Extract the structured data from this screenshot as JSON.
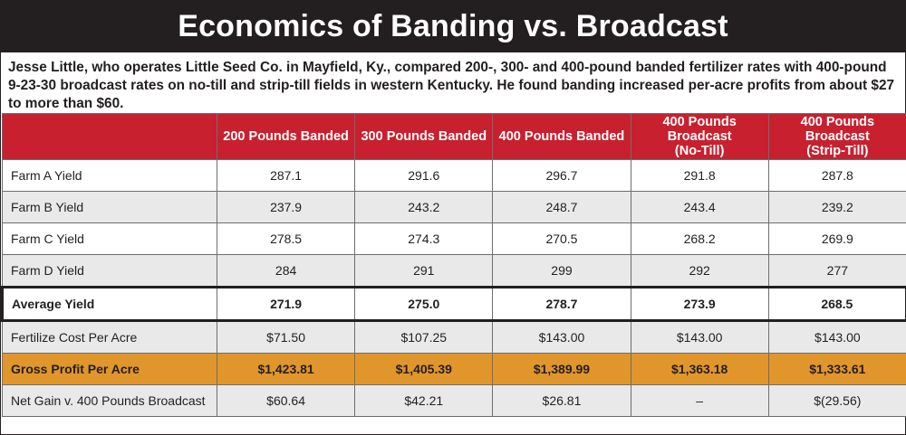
{
  "title": "Economics of Banding vs. Broadcast",
  "intro": "Jesse Little, who operates Little Seed Co. in Mayfield, Ky., compared 200-, 300- and 400-pound banded fertilizer rates with 400-pound 9-23-30 broadcast rates on no-till and strip-till fields in western Kentucky. He found banding increased per-acre profits from about $27 to more than $60.",
  "colors": {
    "title_bg": "#231f20",
    "header_bg": "#c8202f",
    "gross_row_bg": "#e1962b",
    "shaded_row_bg": "#e9e9ea"
  },
  "table": {
    "headers": [
      {
        "line1": "200 Pounds Banded",
        "line2": ""
      },
      {
        "line1": "300 Pounds Banded",
        "line2": ""
      },
      {
        "line1": "400 Pounds Banded",
        "line2": ""
      },
      {
        "line1": "400 Pounds Broadcast",
        "line2": "(No-Till)"
      },
      {
        "line1": "400 Pounds Broadcast",
        "line2": "(Strip-Till)"
      }
    ],
    "rows": [
      {
        "label": "Farm A Yield",
        "values": [
          "287.1",
          "291.6",
          "296.7",
          "291.8",
          "287.8"
        ]
      },
      {
        "label": "Farm B Yield",
        "values": [
          "237.9",
          "243.2",
          "248.7",
          "243.4",
          "239.2"
        ]
      },
      {
        "label": "Farm C Yield",
        "values": [
          "278.5",
          "274.3",
          "270.5",
          "268.2",
          "269.9"
        ]
      },
      {
        "label": "Farm D Yield",
        "values": [
          "284",
          "291",
          "299",
          "292",
          "277"
        ]
      },
      {
        "label": "Average Yield",
        "values": [
          "271.9",
          "275.0",
          "278.7",
          "273.9",
          "268.5"
        ]
      },
      {
        "label": "Fertilize Cost Per Acre",
        "values": [
          "$71.50",
          "$107.25",
          "$143.00",
          "$143.00",
          "$143.00"
        ]
      },
      {
        "label": "Gross Profit Per Acre",
        "values": [
          "$1,423.81",
          "$1,405.39",
          "$1,389.99",
          "$1,363.18",
          "$1,333.61"
        ]
      },
      {
        "label": "Net Gain v. 400 Pounds Broadcast",
        "values": [
          "$60.64",
          "$42.21",
          "$26.81",
          "–",
          "$(29.56)"
        ]
      }
    ]
  }
}
